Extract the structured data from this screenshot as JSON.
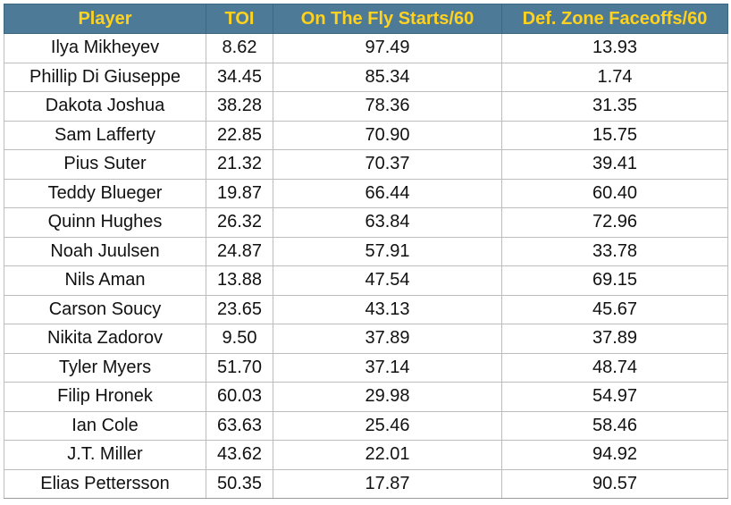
{
  "table": {
    "headers": [
      "Player",
      "TOI",
      "On The Fly Starts/60",
      "Def. Zone Faceoffs/60"
    ],
    "rows": [
      [
        "Ilya Mikheyev",
        "8.62",
        "97.49",
        "13.93"
      ],
      [
        "Phillip Di Giuseppe",
        "34.45",
        "85.34",
        "1.74"
      ],
      [
        "Dakota Joshua",
        "38.28",
        "78.36",
        "31.35"
      ],
      [
        "Sam Lafferty",
        "22.85",
        "70.90",
        "15.75"
      ],
      [
        "Pius Suter",
        "21.32",
        "70.37",
        "39.41"
      ],
      [
        "Teddy Blueger",
        "19.87",
        "66.44",
        "60.40"
      ],
      [
        "Quinn Hughes",
        "26.32",
        "63.84",
        "72.96"
      ],
      [
        "Noah Juulsen",
        "24.87",
        "57.91",
        "33.78"
      ],
      [
        "Nils Aman",
        "13.88",
        "47.54",
        "69.15"
      ],
      [
        "Carson Soucy",
        "23.65",
        "43.13",
        "45.67"
      ],
      [
        "Nikita Zadorov",
        "9.50",
        "37.89",
        "37.89"
      ],
      [
        "Tyler Myers",
        "51.70",
        "37.14",
        "48.74"
      ],
      [
        "Filip Hronek",
        "60.03",
        "29.98",
        "54.97"
      ],
      [
        "Ian Cole",
        "63.63",
        "25.46",
        "58.46"
      ],
      [
        "J.T. Miller",
        "43.62",
        "22.01",
        "94.92"
      ],
      [
        "Elias Pettersson",
        "50.35",
        "17.87",
        "90.57"
      ]
    ]
  },
  "colors": {
    "header_bg": "#4d7a96",
    "header_text": "#ffd21f",
    "grid": "#bdbdbd"
  }
}
